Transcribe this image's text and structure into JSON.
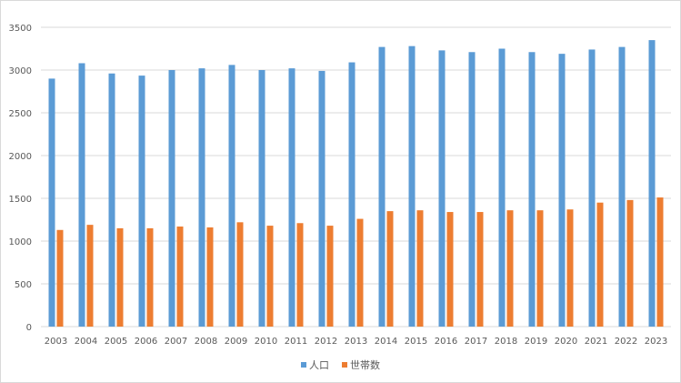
{
  "chart_data": {
    "type": "bar",
    "categories": [
      "2003",
      "2004",
      "2005",
      "2006",
      "2007",
      "2008",
      "2009",
      "2010",
      "2011",
      "2012",
      "2013",
      "2014",
      "2015",
      "2016",
      "2017",
      "2018",
      "2019",
      "2020",
      "2021",
      "2022",
      "2023"
    ],
    "series": [
      {
        "name": "人口",
        "color": "#5b9bd5",
        "values": [
          2900,
          3080,
          2960,
          2935,
          3000,
          3020,
          3060,
          3000,
          3020,
          2990,
          3090,
          3270,
          3280,
          3230,
          3210,
          3250,
          3210,
          3190,
          3240,
          3270,
          3350
        ]
      },
      {
        "name": "世帯数",
        "color": "#ed7d31",
        "values": [
          1130,
          1190,
          1150,
          1150,
          1170,
          1160,
          1220,
          1180,
          1210,
          1180,
          1260,
          1350,
          1360,
          1340,
          1340,
          1360,
          1360,
          1370,
          1450,
          1480,
          1510
        ]
      }
    ],
    "ylim": [
      0,
      3500
    ],
    "yticks": [
      0,
      500,
      1000,
      1500,
      2000,
      2500,
      3000,
      3500
    ],
    "grid": true,
    "legend_position": "bottom",
    "title": "",
    "xlabel": "",
    "ylabel": ""
  }
}
